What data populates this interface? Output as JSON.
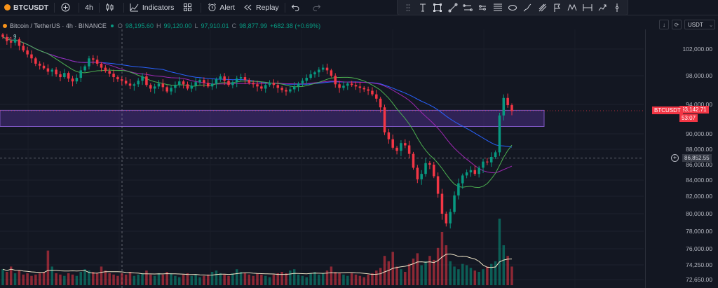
{
  "toolbar": {
    "symbol": "BTCUSDT",
    "interval": "4h",
    "indicators_label": "Indicators",
    "alert_label": "Alert",
    "replay_label": "Replay"
  },
  "legend": {
    "title": "Bitcoin / TetherUS · 4h · BINANCE",
    "open_label": "O",
    "open": "98,195.60",
    "high_label": "H",
    "high": "99,120.00",
    "low_label": "L",
    "low": "97,910.01",
    "close_label": "C",
    "close": "98,877.99",
    "change": "+682.38 (+0.69%)",
    "volume_value": "9"
  },
  "axis": {
    "currency": "USDT",
    "ticks": [
      "102,000.00",
      "98,000.00",
      "94,000.00",
      "90,000.00",
      "88,000.00",
      "86,000.00",
      "84,000.00",
      "82,000.00",
      "80,000.00",
      "78,000.00",
      "76,000.00",
      "74,250.00",
      "72,650.00"
    ],
    "symbol_tag": "BTCUSDT",
    "last_price": "93,142.71",
    "countdown": "53:07",
    "crosshair_price": "86,852.55"
  },
  "colors": {
    "up": "#089981",
    "down": "#f23645",
    "ma_fast": "#4caf50",
    "ma_mid": "#9c27b0",
    "ma_slow": "#2962ff",
    "zone": "#673ab7"
  },
  "chart_data": {
    "type": "candlestick",
    "symbol": "BTCUSDT",
    "interval": "4h",
    "ylim": [
      72650,
      104000
    ],
    "zone": [
      91000,
      93200
    ],
    "closes": [
      103500,
      103000,
      102800,
      103200,
      102400,
      101800,
      101200,
      100600,
      99800,
      99500,
      99100,
      98600,
      98900,
      98200,
      97800,
      98400,
      97600,
      97200,
      97700,
      98800,
      99400,
      100600,
      100400,
      99800,
      99200,
      98700,
      98300,
      97800,
      97500,
      97300,
      96900,
      96600,
      96800,
      97300,
      97900,
      96700,
      96200,
      96500,
      96900,
      96400,
      95800,
      96300,
      96700,
      97200,
      96800,
      96200,
      96600,
      97100,
      97400,
      97000,
      96500,
      96900,
      97500,
      97900,
      97300,
      96700,
      97100,
      97600,
      97800,
      97400,
      97000,
      96800,
      96500,
      96200,
      96700,
      97000,
      96700,
      96300,
      96000,
      95800,
      96100,
      96500,
      96900,
      97300,
      97700,
      98200,
      98500,
      98900,
      99200,
      98800,
      98000,
      96800,
      96300,
      96600,
      96900,
      96700,
      96500,
      96300,
      96100,
      95900,
      95400,
      94800,
      93600,
      90200,
      89300,
      88200,
      87800,
      88800,
      88500,
      87400,
      85600,
      84100,
      84800,
      86200,
      86000,
      84500,
      82300,
      80000,
      78900,
      80200,
      82100,
      83600,
      84600,
      85000,
      85300,
      84800,
      85600,
      86400,
      86300,
      87000,
      87600,
      92500,
      94900,
      93900,
      93100
    ],
    "volumes": [
      12,
      10,
      14,
      9,
      11,
      8,
      9,
      7,
      8,
      9,
      10,
      26,
      14,
      9,
      8,
      7,
      9,
      8,
      7,
      10,
      12,
      11,
      10,
      9,
      14,
      11,
      9,
      8,
      7,
      9,
      8,
      10,
      7,
      8,
      9,
      11,
      8,
      7,
      9,
      8,
      10,
      9,
      7,
      6,
      8,
      9,
      7,
      8,
      6,
      7,
      8,
      10,
      11,
      9,
      8,
      7,
      9,
      12,
      10,
      9,
      8,
      7,
      9,
      8,
      7,
      6,
      8,
      9,
      10,
      9,
      11,
      12,
      8,
      7,
      6,
      9,
      10,
      8,
      9,
      11,
      14,
      10,
      9,
      8,
      7,
      9,
      8,
      7,
      6,
      8,
      9,
      11,
      13,
      22,
      18,
      25,
      14,
      12,
      10,
      16,
      20,
      24,
      15,
      18,
      22,
      19,
      28,
      40,
      30,
      18,
      14,
      12,
      16,
      15,
      13,
      11,
      10,
      12,
      14,
      16,
      18,
      50,
      30,
      22,
      14
    ]
  }
}
